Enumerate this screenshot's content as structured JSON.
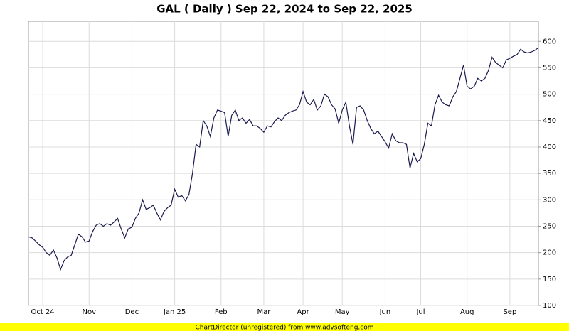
{
  "chart_data": {
    "type": "line",
    "title": "GAL ( Daily ) Sep 22, 2024 to Sep 22, 2025",
    "footer": "ChartDirector (unregistered) from www.advsofteng.com",
    "color": "#1a1a4e",
    "grid": true,
    "ylim": [
      100,
      638
    ],
    "yticks": [
      100,
      150,
      200,
      250,
      300,
      350,
      400,
      450,
      500,
      550,
      600
    ],
    "categories": [
      null,
      null,
      null,
      null,
      "Oct 24",
      null,
      null,
      null,
      null,
      null,
      null,
      null,
      null,
      null,
      null,
      null,
      null,
      "Nov",
      null,
      null,
      null,
      null,
      null,
      null,
      null,
      null,
      null,
      null,
      null,
      "Dec",
      null,
      null,
      null,
      null,
      null,
      null,
      null,
      null,
      null,
      null,
      null,
      "Jan 25",
      null,
      null,
      null,
      null,
      null,
      null,
      null,
      null,
      null,
      null,
      null,
      null,
      "Feb",
      null,
      null,
      null,
      null,
      null,
      null,
      null,
      null,
      null,
      null,
      null,
      "Mar",
      null,
      null,
      null,
      null,
      null,
      null,
      null,
      null,
      null,
      null,
      "Apr",
      null,
      null,
      null,
      null,
      null,
      null,
      null,
      null,
      null,
      null,
      "May",
      null,
      null,
      null,
      null,
      null,
      null,
      null,
      null,
      null,
      null,
      null,
      "Jun",
      null,
      null,
      null,
      null,
      null,
      null,
      null,
      null,
      null,
      "Jul",
      null,
      null,
      null,
      null,
      null,
      null,
      null,
      null,
      null,
      null,
      null,
      null,
      "Aug",
      null,
      null,
      null,
      null,
      null,
      null,
      null,
      null,
      null,
      null,
      null,
      "Sep",
      null,
      null,
      null,
      null,
      null,
      null,
      null,
      null
    ],
    "values": [
      230,
      228,
      222,
      215,
      210,
      200,
      195,
      205,
      190,
      168,
      185,
      192,
      195,
      215,
      235,
      230,
      220,
      222,
      240,
      252,
      255,
      250,
      255,
      252,
      258,
      265,
      245,
      228,
      245,
      248,
      265,
      275,
      300,
      282,
      285,
      290,
      275,
      262,
      278,
      285,
      290,
      320,
      305,
      308,
      298,
      310,
      350,
      405,
      400,
      450,
      440,
      420,
      455,
      470,
      468,
      465,
      420,
      460,
      470,
      450,
      455,
      445,
      452,
      440,
      440,
      435,
      428,
      440,
      438,
      448,
      455,
      450,
      460,
      465,
      468,
      470,
      480,
      505,
      485,
      480,
      490,
      470,
      478,
      500,
      495,
      480,
      472,
      445,
      470,
      485,
      440,
      405,
      475,
      478,
      470,
      450,
      435,
      425,
      430,
      420,
      410,
      398,
      425,
      412,
      408,
      408,
      405,
      360,
      388,
      372,
      378,
      405,
      445,
      440,
      480,
      498,
      485,
      480,
      478,
      495,
      505,
      530,
      555,
      515,
      510,
      515,
      530,
      525,
      530,
      545,
      570,
      560,
      555,
      550,
      565,
      568,
      572,
      575,
      585,
      580,
      578,
      580,
      583,
      588
    ]
  }
}
